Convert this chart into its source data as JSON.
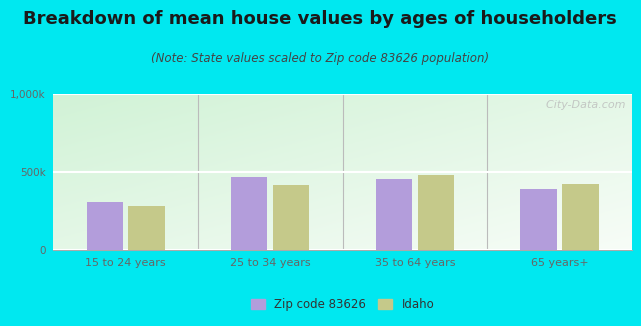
{
  "title": "Breakdown of mean house values by ages of householders",
  "subtitle": "(Note: State values scaled to Zip code 83626 population)",
  "categories": [
    "15 to 24 years",
    "25 to 34 years",
    "35 to 64 years",
    "65 years+"
  ],
  "zip_values": [
    310000,
    465000,
    455000,
    390000
  ],
  "state_values": [
    280000,
    415000,
    480000,
    425000
  ],
  "zip_color": "#b39ddb",
  "state_color": "#c5c98a",
  "background_outer": "#00e8f0",
  "ylim": [
    0,
    1000000
  ],
  "ytick_labels": [
    "0",
    "500k",
    "1,000k"
  ],
  "title_fontsize": 13,
  "subtitle_fontsize": 8.5,
  "legend_label_zip": "Zip code 83626",
  "legend_label_state": "Idaho",
  "watermark": "  City-Data.com"
}
